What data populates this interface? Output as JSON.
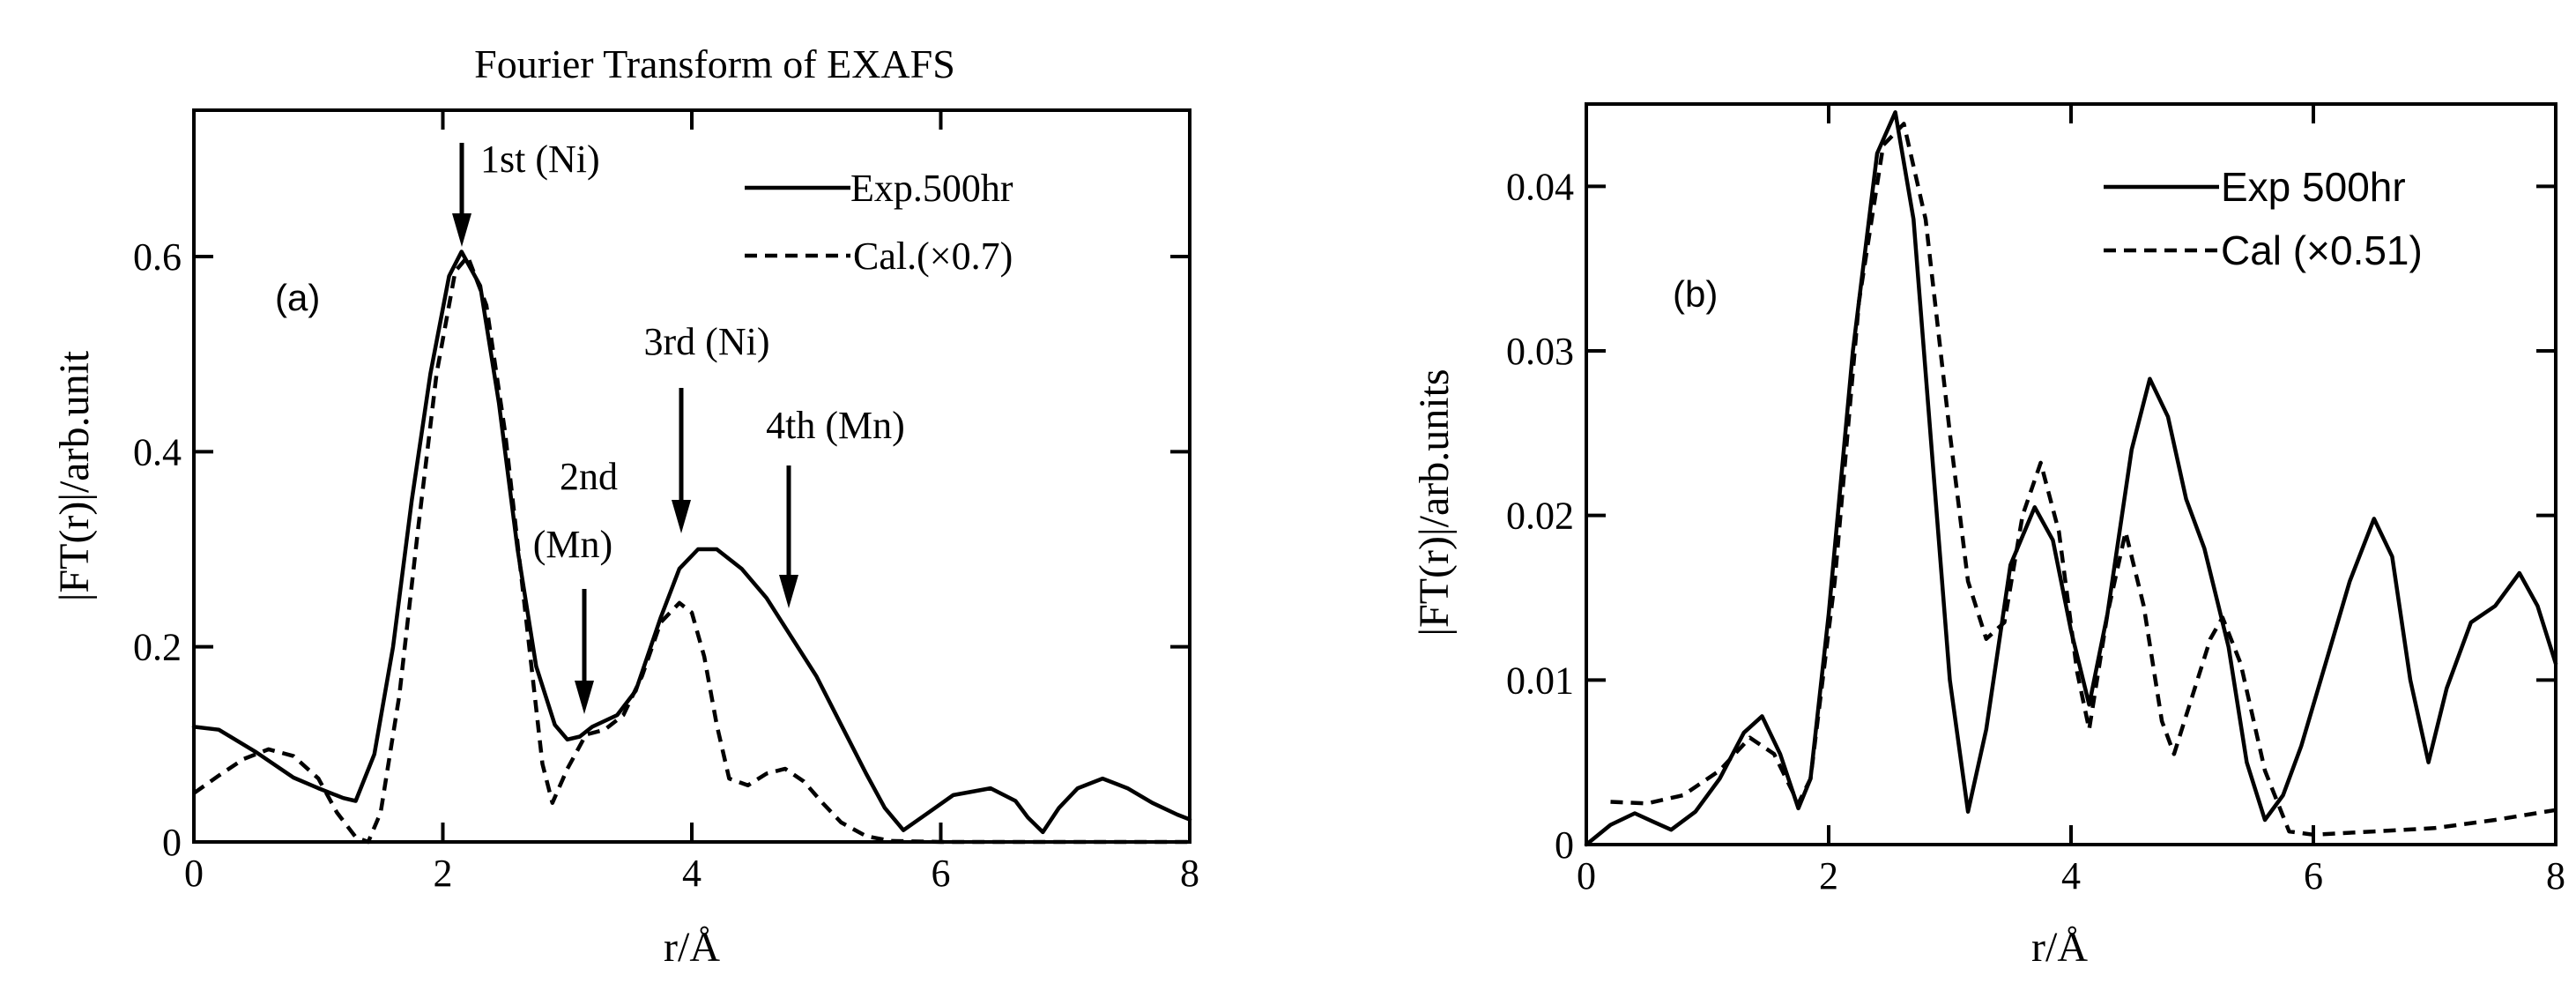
{
  "chart_data": [
    {
      "type": "line",
      "title": "Fourier Transform of EXAFS",
      "panel_label": "(a)",
      "xlabel": "r/Å",
      "ylabel": "|FT(r)|/arb.unit",
      "xlim": [
        0,
        8
      ],
      "ylim": [
        0,
        0.75
      ],
      "x_ticks": [
        0,
        2,
        4,
        6,
        8
      ],
      "y_ticks": [
        0,
        0.2,
        0.4,
        0.6
      ],
      "x_tick_labels": [
        "0",
        "2",
        "4",
        "6",
        "8"
      ],
      "y_tick_labels": [
        "0",
        "0.2",
        "0.4",
        "0.6"
      ],
      "legend_placement": "top-right",
      "grid": false,
      "series": [
        {
          "name": "Exp.500hr",
          "style": "solid",
          "points": [
            [
              0,
              0.118
            ],
            [
              0.2,
              0.115
            ],
            [
              0.5,
              0.092
            ],
            [
              0.8,
              0.066
            ],
            [
              1.0,
              0.055
            ],
            [
              1.2,
              0.045
            ],
            [
              1.3,
              0.042
            ],
            [
              1.45,
              0.09
            ],
            [
              1.6,
              0.2
            ],
            [
              1.75,
              0.35
            ],
            [
              1.9,
              0.48
            ],
            [
              2.05,
              0.58
            ],
            [
              2.15,
              0.605
            ],
            [
              2.3,
              0.57
            ],
            [
              2.45,
              0.45
            ],
            [
              2.6,
              0.3
            ],
            [
              2.75,
              0.18
            ],
            [
              2.9,
              0.12
            ],
            [
              3.0,
              0.105
            ],
            [
              3.1,
              0.108
            ],
            [
              3.2,
              0.118
            ],
            [
              3.4,
              0.13
            ],
            [
              3.55,
              0.155
            ],
            [
              3.75,
              0.23
            ],
            [
              3.9,
              0.28
            ],
            [
              4.05,
              0.3
            ],
            [
              4.2,
              0.3
            ],
            [
              4.4,
              0.28
            ],
            [
              4.6,
              0.25
            ],
            [
              4.8,
              0.21
            ],
            [
              5.0,
              0.17
            ],
            [
              5.2,
              0.12
            ],
            [
              5.4,
              0.07
            ],
            [
              5.55,
              0.035
            ],
            [
              5.7,
              0.012
            ],
            [
              5.9,
              0.03
            ],
            [
              6.1,
              0.048
            ],
            [
              6.4,
              0.055
            ],
            [
              6.6,
              0.042
            ],
            [
              6.7,
              0.025
            ],
            [
              6.82,
              0.01
            ],
            [
              6.95,
              0.035
            ],
            [
              7.1,
              0.055
            ],
            [
              7.3,
              0.065
            ],
            [
              7.5,
              0.055
            ],
            [
              7.7,
              0.04
            ],
            [
              7.9,
              0.028
            ],
            [
              8.0,
              0.023
            ]
          ]
        },
        {
          "name": "Cal.(×0.7)",
          "style": "dashed",
          "points": [
            [
              0,
              0.05
            ],
            [
              0.2,
              0.068
            ],
            [
              0.4,
              0.085
            ],
            [
              0.6,
              0.095
            ],
            [
              0.8,
              0.088
            ],
            [
              1.0,
              0.065
            ],
            [
              1.15,
              0.03
            ],
            [
              1.3,
              0.005
            ],
            [
              1.4,
              0.0
            ],
            [
              1.5,
              0.03
            ],
            [
              1.65,
              0.15
            ],
            [
              1.8,
              0.32
            ],
            [
              1.95,
              0.48
            ],
            [
              2.1,
              0.585
            ],
            [
              2.2,
              0.6
            ],
            [
              2.35,
              0.55
            ],
            [
              2.5,
              0.42
            ],
            [
              2.65,
              0.25
            ],
            [
              2.8,
              0.08
            ],
            [
              2.88,
              0.04
            ],
            [
              3.0,
              0.075
            ],
            [
              3.15,
              0.11
            ],
            [
              3.3,
              0.115
            ],
            [
              3.45,
              0.13
            ],
            [
              3.6,
              0.17
            ],
            [
              3.75,
              0.225
            ],
            [
              3.9,
              0.245
            ],
            [
              4.0,
              0.235
            ],
            [
              4.1,
              0.19
            ],
            [
              4.2,
              0.12
            ],
            [
              4.3,
              0.065
            ],
            [
              4.45,
              0.058
            ],
            [
              4.6,
              0.07
            ],
            [
              4.75,
              0.075
            ],
            [
              4.9,
              0.062
            ],
            [
              5.05,
              0.04
            ],
            [
              5.2,
              0.02
            ],
            [
              5.4,
              0.006
            ],
            [
              5.6,
              0.001
            ],
            [
              6.0,
              0.0
            ],
            [
              8.0,
              0.0
            ]
          ]
        }
      ],
      "annotations": [
        {
          "text": "1st (Ni)",
          "x": 2.15
        },
        {
          "text": "2nd",
          "x": 3.15
        },
        {
          "text": "(Mn)",
          "x": 3.15
        },
        {
          "text": "3rd (Ni)",
          "x": 3.9
        },
        {
          "text": "4th (Mn)",
          "x": 4.78
        }
      ]
    },
    {
      "type": "line",
      "title": "",
      "panel_label": "(b)",
      "xlabel": "r/Å",
      "ylabel": "|FT(r)|/arb.units",
      "xlim": [
        0,
        8
      ],
      "ylim": [
        0,
        0.045
      ],
      "x_ticks": [
        0,
        2,
        4,
        6,
        8
      ],
      "y_ticks": [
        0,
        0.01,
        0.02,
        0.03,
        0.04
      ],
      "x_tick_labels": [
        "0",
        "2",
        "4",
        "6",
        "8"
      ],
      "y_tick_labels": [
        "0",
        "0.01",
        "0.02",
        "0.03",
        "0.04"
      ],
      "legend_placement": "top-right",
      "grid": false,
      "series": [
        {
          "name": "Exp 500hr",
          "style": "solid",
          "points": [
            [
              0,
              0.0
            ],
            [
              0.2,
              0.0012
            ],
            [
              0.4,
              0.0019
            ],
            [
              0.55,
              0.0014
            ],
            [
              0.7,
              0.0009
            ],
            [
              0.9,
              0.002
            ],
            [
              1.1,
              0.004
            ],
            [
              1.3,
              0.0068
            ],
            [
              1.45,
              0.0078
            ],
            [
              1.6,
              0.0055
            ],
            [
              1.75,
              0.0022
            ],
            [
              1.85,
              0.004
            ],
            [
              2.0,
              0.014
            ],
            [
              2.2,
              0.03
            ],
            [
              2.4,
              0.042
            ],
            [
              2.55,
              0.0445
            ],
            [
              2.7,
              0.038
            ],
            [
              2.85,
              0.024
            ],
            [
              3.0,
              0.01
            ],
            [
              3.15,
              0.002
            ],
            [
              3.3,
              0.007
            ],
            [
              3.5,
              0.017
            ],
            [
              3.7,
              0.0205
            ],
            [
              3.85,
              0.0185
            ],
            [
              4.0,
              0.013
            ],
            [
              4.15,
              0.0085
            ],
            [
              4.3,
              0.014
            ],
            [
              4.5,
              0.024
            ],
            [
              4.65,
              0.0283
            ],
            [
              4.8,
              0.026
            ],
            [
              4.95,
              0.021
            ],
            [
              5.1,
              0.018
            ],
            [
              5.3,
              0.012
            ],
            [
              5.45,
              0.005
            ],
            [
              5.6,
              0.0015
            ],
            [
              5.75,
              0.003
            ],
            [
              5.9,
              0.006
            ],
            [
              6.1,
              0.011
            ],
            [
              6.3,
              0.016
            ],
            [
              6.5,
              0.0198
            ],
            [
              6.65,
              0.0175
            ],
            [
              6.8,
              0.01
            ],
            [
              6.95,
              0.005
            ],
            [
              7.1,
              0.0095
            ],
            [
              7.3,
              0.0135
            ],
            [
              7.5,
              0.0145
            ],
            [
              7.7,
              0.0165
            ],
            [
              7.85,
              0.0145
            ],
            [
              8.0,
              0.011
            ]
          ]
        },
        {
          "name": "Cal (×0.51)",
          "style": "dashed",
          "points": [
            [
              0.2,
              0.0026
            ],
            [
              0.5,
              0.0025
            ],
            [
              0.8,
              0.003
            ],
            [
              1.1,
              0.0045
            ],
            [
              1.35,
              0.0065
            ],
            [
              1.55,
              0.0055
            ],
            [
              1.75,
              0.0025
            ],
            [
              1.85,
              0.004
            ],
            [
              2.05,
              0.016
            ],
            [
              2.25,
              0.033
            ],
            [
              2.45,
              0.0425
            ],
            [
              2.62,
              0.0438
            ],
            [
              2.8,
              0.038
            ],
            [
              3.0,
              0.025
            ],
            [
              3.15,
              0.016
            ],
            [
              3.3,
              0.0125
            ],
            [
              3.45,
              0.0135
            ],
            [
              3.6,
              0.02
            ],
            [
              3.75,
              0.0232
            ],
            [
              3.9,
              0.019
            ],
            [
              4.05,
              0.0105
            ],
            [
              4.15,
              0.007
            ],
            [
              4.3,
              0.014
            ],
            [
              4.45,
              0.019
            ],
            [
              4.6,
              0.0145
            ],
            [
              4.75,
              0.0075
            ],
            [
              4.85,
              0.0055
            ],
            [
              5.0,
              0.009
            ],
            [
              5.15,
              0.0125
            ],
            [
              5.25,
              0.0138
            ],
            [
              5.4,
              0.011
            ],
            [
              5.6,
              0.0045
            ],
            [
              5.8,
              0.0008
            ],
            [
              6.0,
              0.0006
            ],
            [
              6.5,
              0.0008
            ],
            [
              7.0,
              0.001
            ],
            [
              7.5,
              0.0015
            ],
            [
              8.0,
              0.0021
            ]
          ]
        }
      ]
    }
  ]
}
